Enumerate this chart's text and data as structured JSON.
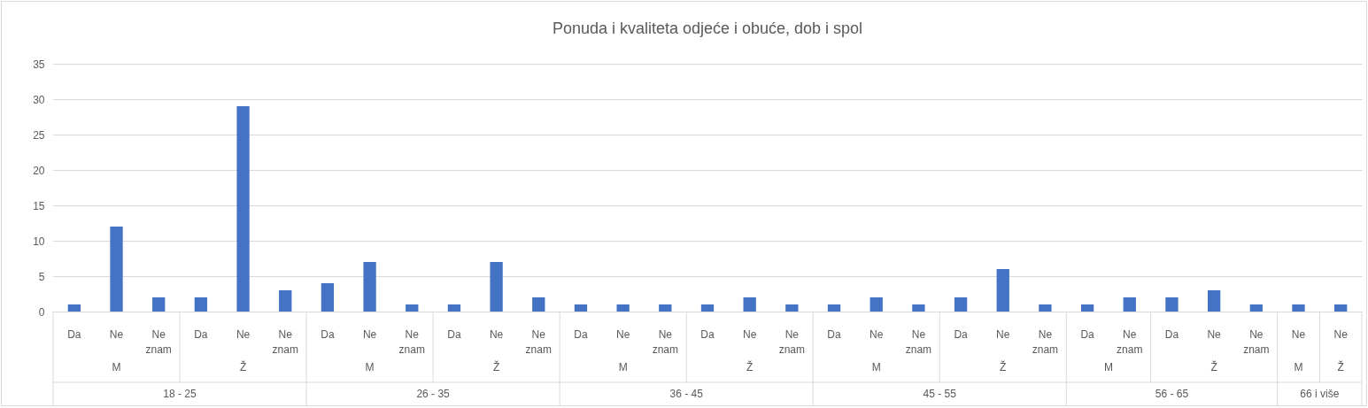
{
  "chart_data": {
    "type": "bar",
    "title": "Ponuda i kvaliteta odjeće i obuće, dob i spol",
    "categories": [
      "Da",
      "Ne",
      "Ne znam",
      "Da",
      "Ne",
      "Ne znam",
      "Da",
      "Ne",
      "Ne znam",
      "Da",
      "Ne",
      "Ne znam",
      "Da",
      "Ne",
      "Ne znam",
      "Da",
      "Ne",
      "Ne znam",
      "Da",
      "Ne",
      "Ne znam",
      "Da",
      "Ne",
      "Ne znam",
      "Da",
      "Ne znam",
      "Da",
      "Ne",
      "Ne znam",
      "Ne",
      "Ne"
    ],
    "values": [
      1,
      12,
      2,
      2,
      29,
      3,
      4,
      7,
      1,
      1,
      7,
      2,
      1,
      1,
      1,
      1,
      2,
      1,
      1,
      2,
      1,
      2,
      6,
      1,
      1,
      2,
      2,
      3,
      1,
      1,
      1
    ],
    "color": "#4472c4",
    "annotations": [
      "M",
      "Ž",
      "M",
      "Ž",
      "M",
      "Ž",
      "M",
      "Ž",
      "M",
      "Ž",
      "M",
      "Ž",
      "18 - 25",
      "26 - 35",
      "36 - 45",
      "45 - 55",
      "56 - 65",
      "66 i više"
    ],
    "ylim": [
      0,
      35
    ],
    "yticks": [
      0,
      5,
      10,
      15,
      20,
      25,
      30,
      35
    ],
    "grid": "y"
  }
}
